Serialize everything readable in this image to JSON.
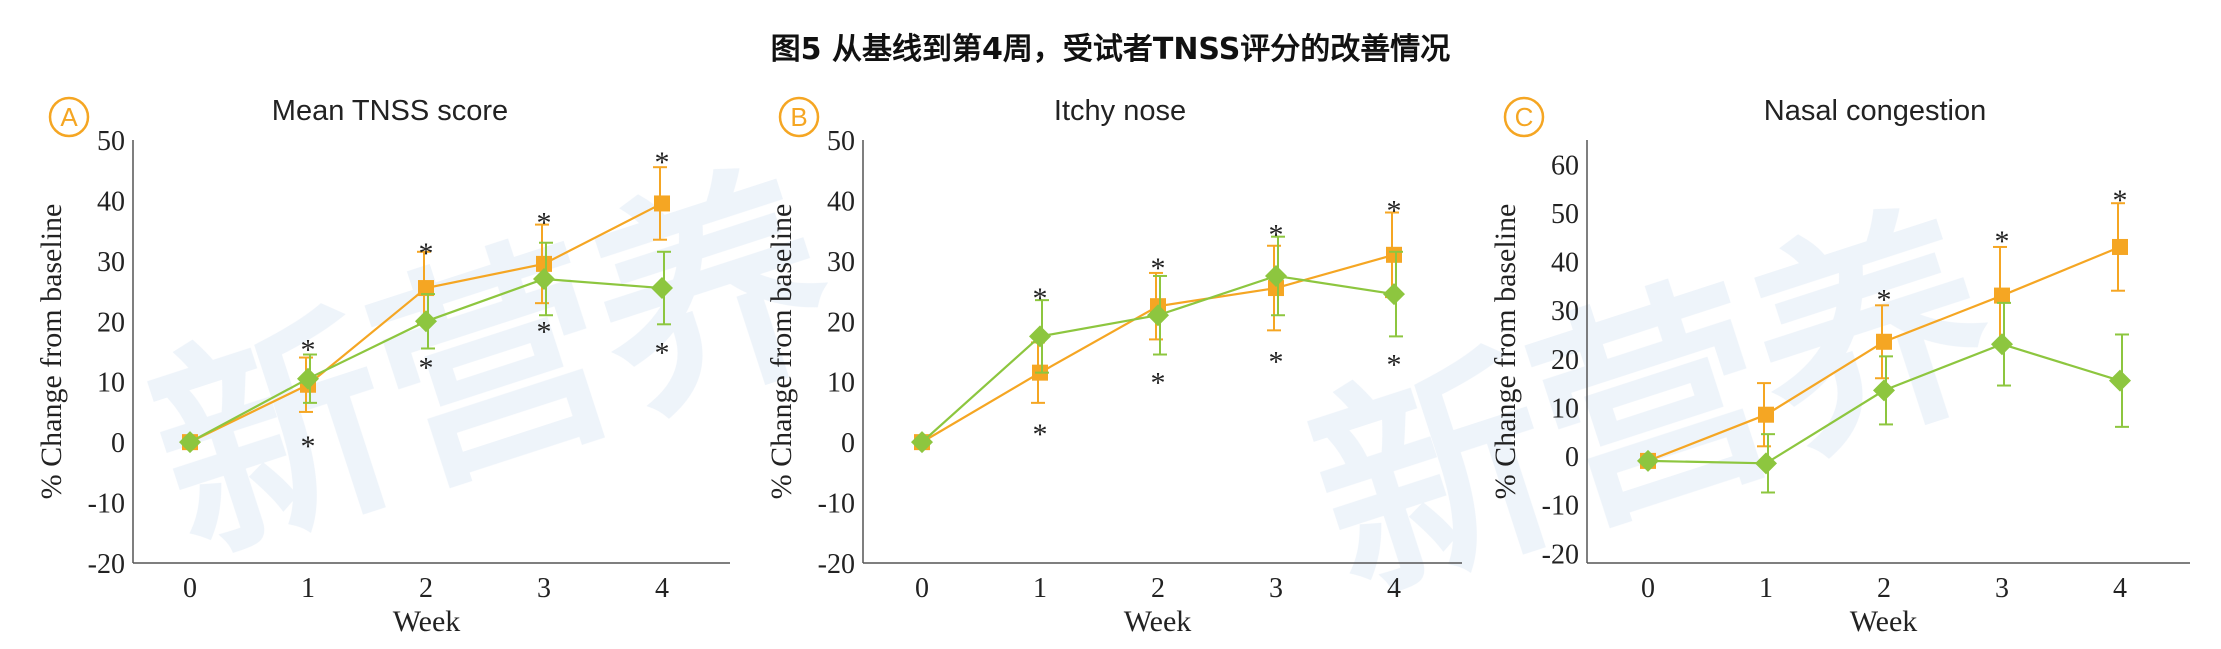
{
  "title": "图5 从基线到第4周，受试者TNSS评分的改善情况",
  "colors": {
    "series_a": "#f5a623",
    "series_b": "#8dc63f",
    "axis": "#555555",
    "badge": "#f5a623"
  },
  "chart_data": [
    {
      "type": "line",
      "panel_label": "A",
      "title": "Mean TNSS score",
      "xlabel": "Week",
      "ylabel": "% Change from baseline",
      "x": [
        0,
        1,
        2,
        3,
        4
      ],
      "ylim": [
        -20,
        50
      ],
      "yticks": [
        -20,
        -10,
        0,
        10,
        20,
        30,
        40,
        50
      ],
      "yticklabels": [
        "-20",
        "-10",
        "0",
        "10",
        "20",
        "30",
        "40",
        "50"
      ],
      "series": [
        {
          "marker": "square",
          "color": "#f5a623",
          "values": [
            0,
            9.5,
            25.5,
            29.5,
            39.5
          ],
          "errors": [
            0,
            4.5,
            6,
            6.5,
            6
          ]
        },
        {
          "marker": "diamond",
          "color": "#8dc63f",
          "values": [
            0,
            10.5,
            20,
            27,
            25.5
          ],
          "errors": [
            0,
            4,
            4.5,
            6,
            6
          ]
        }
      ],
      "annotations": [
        {
          "x": 1,
          "y": 16,
          "text": "*"
        },
        {
          "x": 1,
          "y": 0,
          "text": "*"
        },
        {
          "x": 2,
          "y": 32,
          "text": "*"
        },
        {
          "x": 2,
          "y": 13,
          "text": "*"
        },
        {
          "x": 3,
          "y": 37,
          "text": "*"
        },
        {
          "x": 3,
          "y": 19,
          "text": "*"
        },
        {
          "x": 4,
          "y": 47,
          "text": "*"
        },
        {
          "x": 4,
          "y": 15.5,
          "text": "*"
        }
      ]
    },
    {
      "type": "line",
      "panel_label": "B",
      "title": "Itchy nose",
      "xlabel": "Week",
      "ylabel": "% Change from baseline",
      "x": [
        0,
        1,
        2,
        3,
        4
      ],
      "ylim": [
        -20,
        50
      ],
      "yticks": [
        -20,
        -10,
        0,
        10,
        20,
        30,
        40,
        50
      ],
      "yticklabels": [
        "-20",
        "-10",
        "0",
        "10",
        "20",
        "30",
        "40",
        "50"
      ],
      "series": [
        {
          "marker": "square",
          "color": "#f5a623",
          "values": [
            0,
            11.5,
            22.5,
            25.5,
            31
          ],
          "errors": [
            0,
            5,
            5.5,
            7,
            7
          ]
        },
        {
          "marker": "diamond",
          "color": "#8dc63f",
          "values": [
            0,
            17.5,
            21,
            27.5,
            24.5
          ],
          "errors": [
            0,
            6,
            6.5,
            6.5,
            7
          ]
        }
      ],
      "annotations": [
        {
          "x": 1,
          "y": 24.5,
          "text": "*"
        },
        {
          "x": 1,
          "y": 2,
          "text": "*"
        },
        {
          "x": 2,
          "y": 29.5,
          "text": "*"
        },
        {
          "x": 2,
          "y": 10.5,
          "text": "*"
        },
        {
          "x": 3,
          "y": 35,
          "text": "*"
        },
        {
          "x": 3,
          "y": 14,
          "text": "*"
        },
        {
          "x": 4,
          "y": 39,
          "text": "*"
        },
        {
          "x": 4,
          "y": 13.5,
          "text": "*"
        }
      ]
    },
    {
      "type": "line",
      "panel_label": "C",
      "title": "Nasal congestion",
      "xlabel": "Week",
      "ylabel": "% Change from baseline",
      "x": [
        0,
        1,
        2,
        3,
        4
      ],
      "ylim": [
        -22,
        65
      ],
      "yticks": [
        -20,
        -10,
        0,
        10,
        20,
        30,
        40,
        50,
        60
      ],
      "yticklabels": [
        "-20",
        "-10",
        "0",
        "10",
        "20",
        "30",
        "40",
        "50",
        "60"
      ],
      "series": [
        {
          "marker": "square",
          "color": "#f5a623",
          "values": [
            -1,
            8.5,
            23.5,
            33,
            43
          ],
          "errors": [
            0,
            6.5,
            7.5,
            10,
            9
          ]
        },
        {
          "marker": "diamond",
          "color": "#8dc63f",
          "values": [
            -1,
            -1.5,
            13.5,
            23,
            15.5
          ],
          "errors": [
            0,
            6,
            7,
            8.5,
            9.5
          ]
        }
      ],
      "annotations": [
        {
          "x": 2,
          "y": 33,
          "text": "*"
        },
        {
          "x": 3,
          "y": 45,
          "text": "*"
        },
        {
          "x": 4,
          "y": 53.5,
          "text": "*"
        }
      ]
    }
  ]
}
